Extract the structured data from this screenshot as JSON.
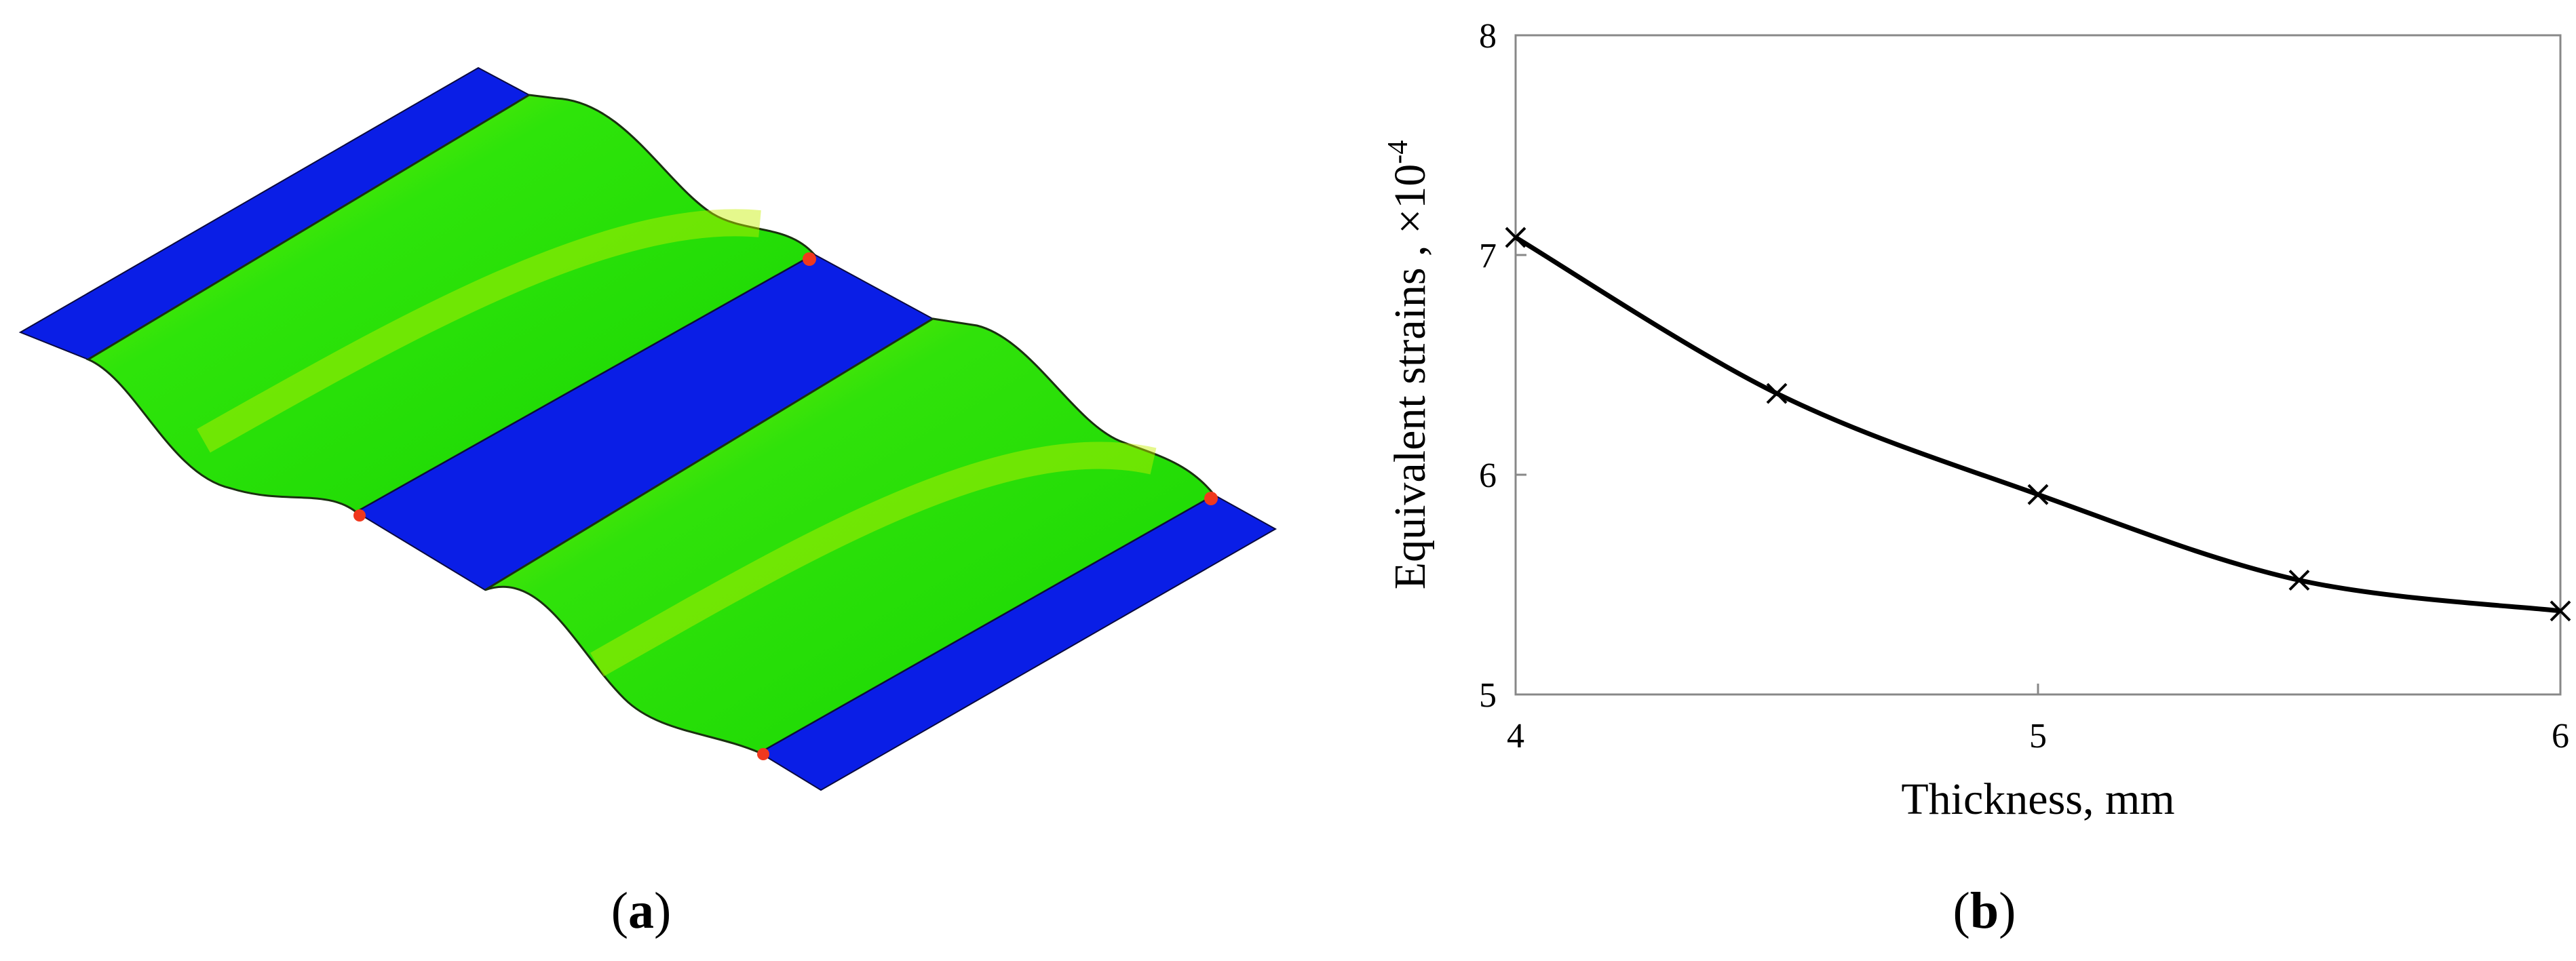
{
  "panel_a": {
    "label_open": "(",
    "label_letter": "a",
    "label_close": ")",
    "colors": {
      "flat_band": "#0a1ee6",
      "wave_band": "#22dd06",
      "highlight": "#c6f000",
      "hotspot": "#f0381e"
    }
  },
  "panel_b": {
    "label_open": "(",
    "label_letter": "b",
    "label_close": ")"
  },
  "chart_data": {
    "type": "line",
    "title": "",
    "xlabel": "Thickness, mm",
    "ylabel_main": "Equivalent strains , ×10",
    "ylabel_exponent": "-4",
    "xlim": [
      4,
      6
    ],
    "ylim": [
      5,
      8
    ],
    "x_ticks": [
      "4",
      "5",
      "6"
    ],
    "y_ticks": [
      "5",
      "6",
      "7",
      "8"
    ],
    "x_tick_values": [
      4,
      5,
      6
    ],
    "y_tick_values": [
      5,
      6,
      7,
      8
    ],
    "grid": false,
    "marker": "x",
    "line_color": "#000000",
    "series": [
      {
        "x": [
          4.0,
          4.5,
          5.0,
          5.5,
          6.0
        ],
        "values": [
          7.08,
          6.37,
          5.91,
          5.52,
          5.38
        ]
      }
    ]
  }
}
